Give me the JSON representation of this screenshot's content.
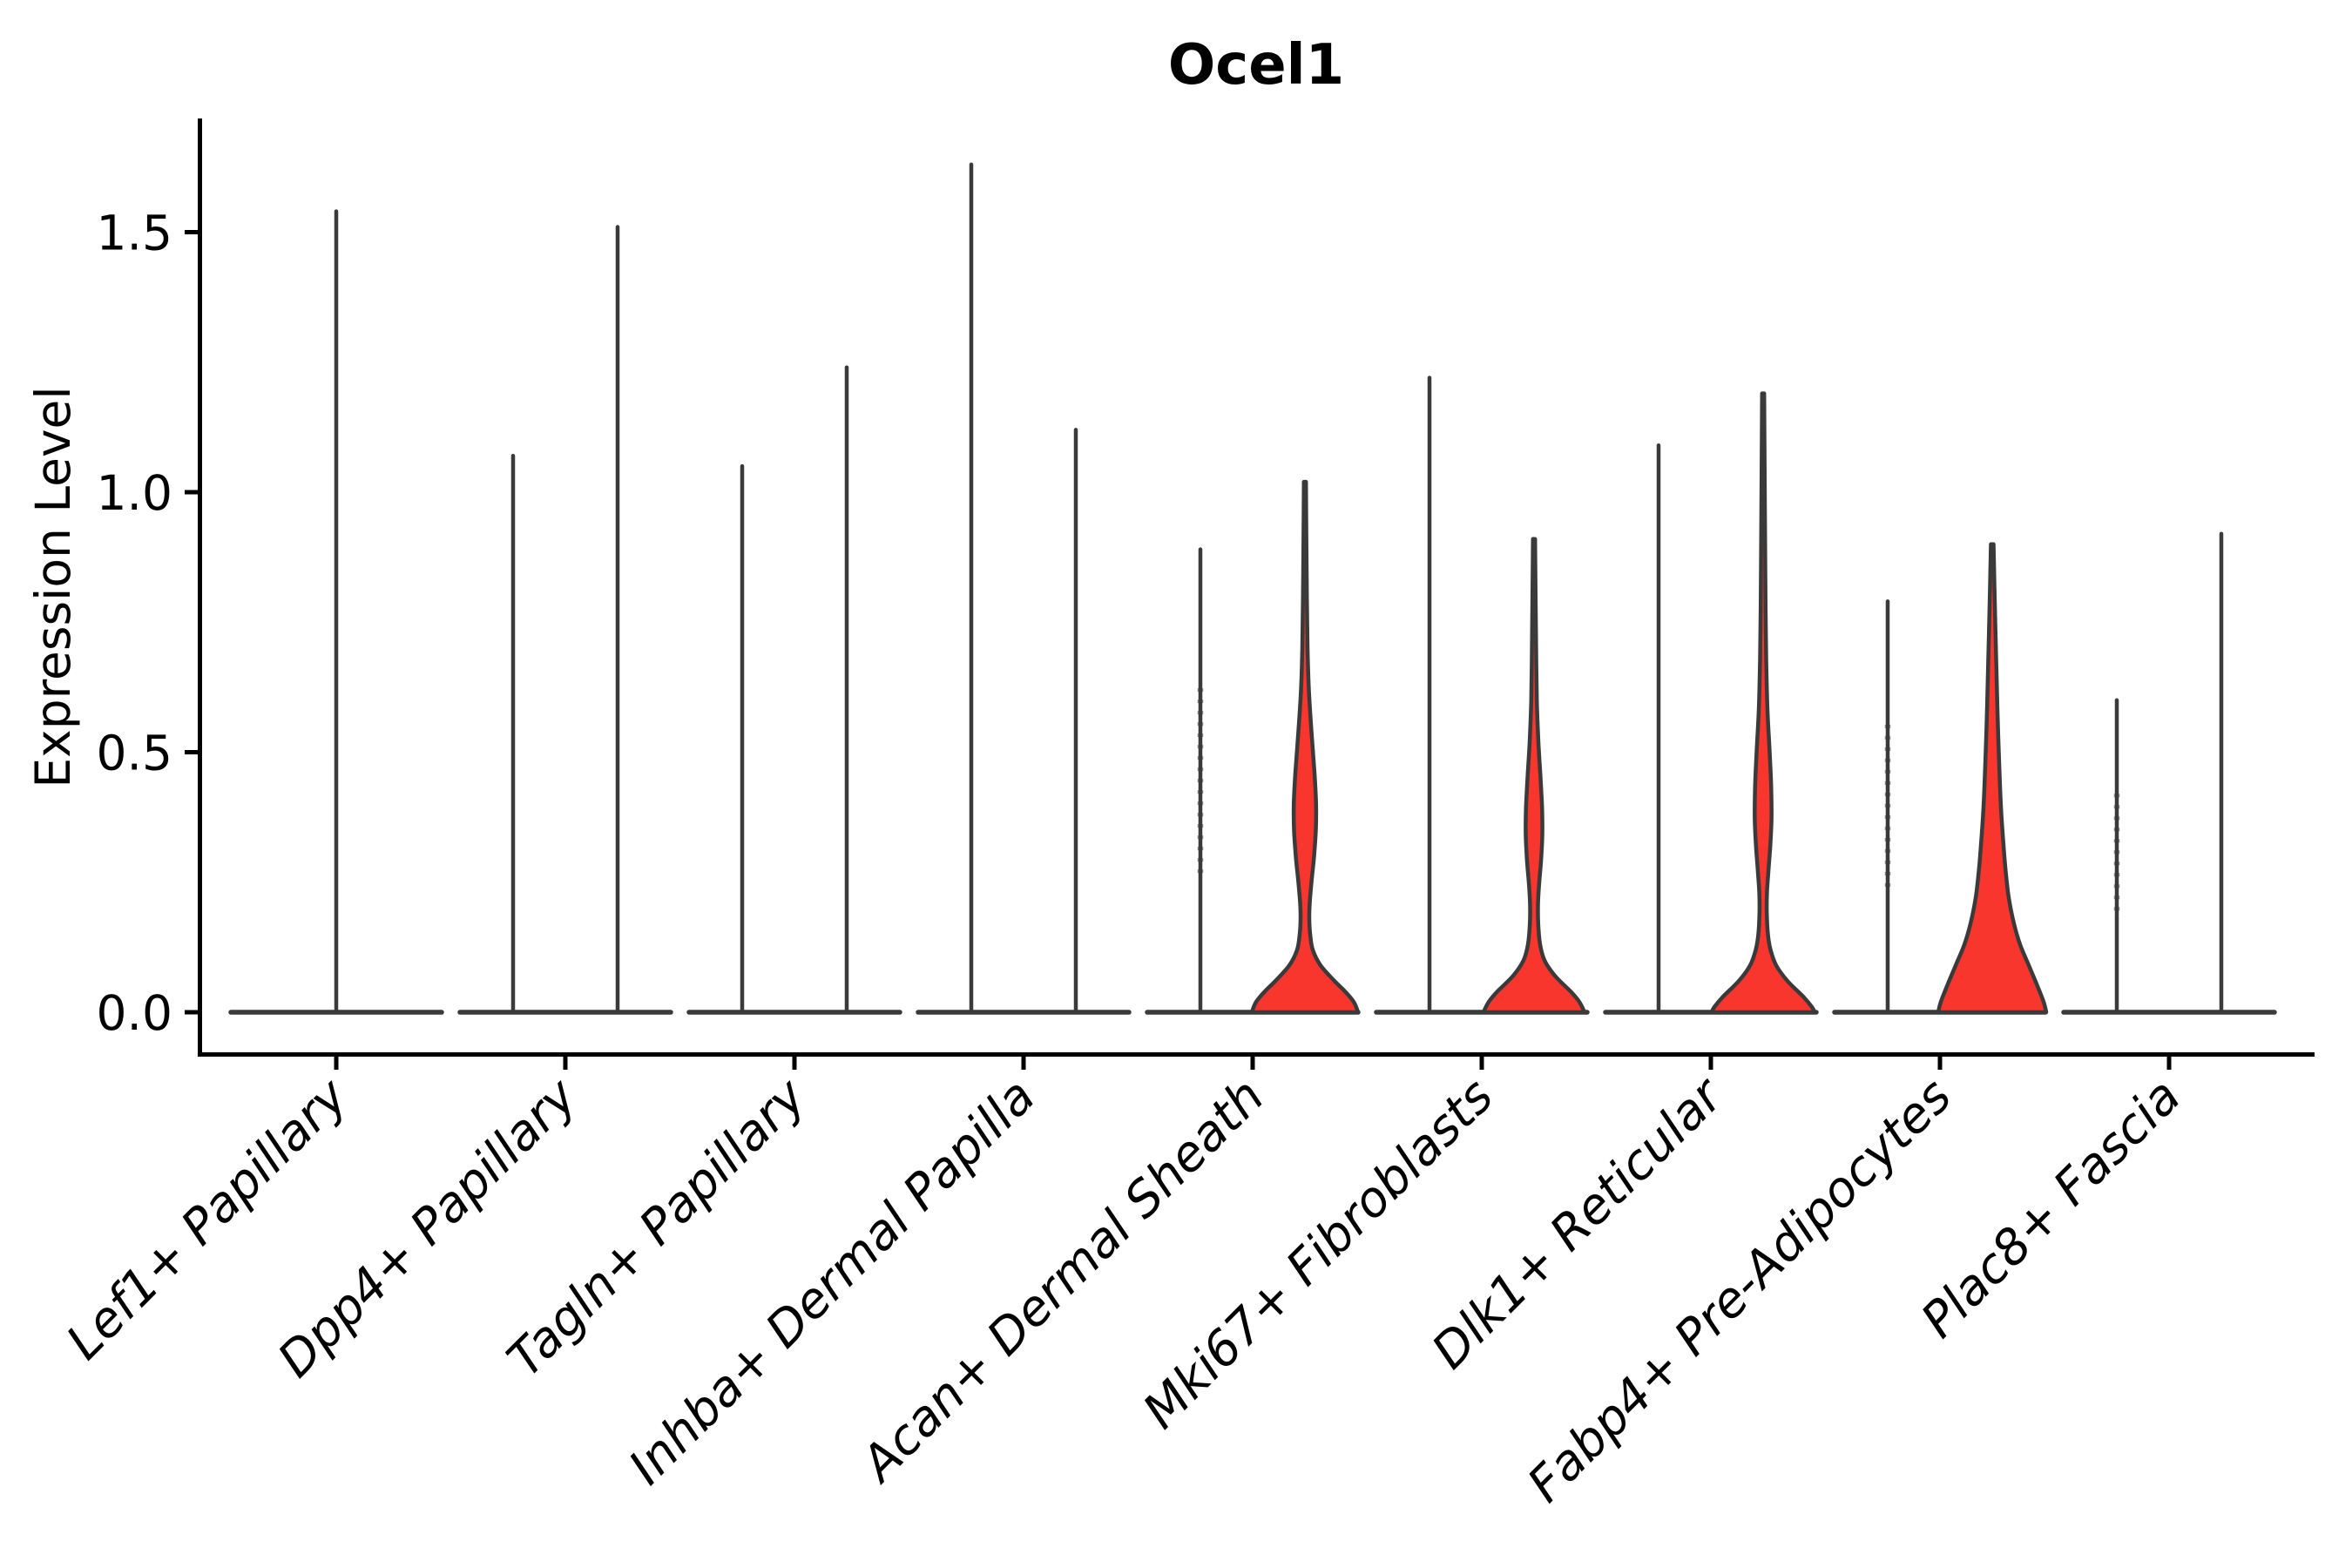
{
  "title": "Ocel1",
  "chart_data": {
    "type": "violin",
    "title": "Ocel1",
    "ylabel": "Expression Level",
    "xlabel": "",
    "yticks": [
      "0.0",
      "0.5",
      "1.0",
      "1.5"
    ],
    "ytick_values": [
      0.0,
      0.5,
      1.0,
      1.5
    ],
    "ylim": [
      -0.08,
      1.72
    ],
    "grid": "off",
    "legend": "none",
    "colors": {
      "violin_fill": "#f8362d",
      "violin_outline": "#3a3a3a",
      "axis": "#000000",
      "background": "#ffffff"
    },
    "description": "Grouped violin plot of Ocel1 expression per fibroblast cluster; each category shows a flat base at 0 with thin density spikes (left/right group); four categories have a visible red-filled right violin.",
    "categories": [
      {
        "label": "Lef1+ Papillary",
        "violins": [
          {
            "pos": "center",
            "type": "spike",
            "max": 1.54
          }
        ]
      },
      {
        "label": "Dpp4+ Papillary",
        "violins": [
          {
            "pos": "left",
            "type": "spike",
            "max": 1.07
          },
          {
            "pos": "right",
            "type": "spike",
            "max": 1.51
          }
        ]
      },
      {
        "label": "Tagln+ Papillary",
        "violins": [
          {
            "pos": "left",
            "type": "spike",
            "max": 1.05
          },
          {
            "pos": "right",
            "type": "spike",
            "max": 1.24
          }
        ]
      },
      {
        "label": "Inhba+ Dermal Papilla",
        "violins": [
          {
            "pos": "left",
            "type": "spike",
            "max": 1.63
          },
          {
            "pos": "right",
            "type": "spike",
            "max": 1.12
          }
        ]
      },
      {
        "label": "Acan+ Dermal Sheath",
        "violins": [
          {
            "pos": "left",
            "type": "spike",
            "max": 0.89,
            "dotted": true
          },
          {
            "pos": "right",
            "type": "violin",
            "max": 1.02,
            "profile": [
              [
                1.02,
                1.2
              ],
              [
                0.92,
                1.6
              ],
              [
                0.8,
                2.2
              ],
              [
                0.7,
                3.0
              ],
              [
                0.62,
                4.5
              ],
              [
                0.54,
                7.5
              ],
              [
                0.46,
                11.0
              ],
              [
                0.4,
                12.8
              ],
              [
                0.35,
                12.5
              ],
              [
                0.3,
                10.5
              ],
              [
                0.25,
                7.5
              ],
              [
                0.21,
                5.5
              ],
              [
                0.18,
                5.0
              ],
              [
                0.15,
                6.0
              ],
              [
                0.12,
                9.0
              ],
              [
                0.09,
                18.0
              ],
              [
                0.06,
                34.0
              ],
              [
                0.04,
                46.0
              ],
              [
                0.02,
                56.0
              ],
              [
                0.0,
                61.0
              ]
            ]
          }
        ]
      },
      {
        "label": "Mki67+ Fibroblasts",
        "violins": [
          {
            "pos": "left",
            "type": "spike",
            "max": 1.22
          },
          {
            "pos": "right",
            "type": "violin",
            "max": 0.91,
            "profile": [
              [
                0.91,
                1.2
              ],
              [
                0.8,
                1.8
              ],
              [
                0.7,
                2.4
              ],
              [
                0.6,
                3.2
              ],
              [
                0.52,
                5.0
              ],
              [
                0.45,
                7.5
              ],
              [
                0.39,
                9.3
              ],
              [
                0.34,
                9.5
              ],
              [
                0.29,
                8.0
              ],
              [
                0.25,
                6.0
              ],
              [
                0.21,
                4.6
              ],
              [
                0.17,
                4.8
              ],
              [
                0.13,
                7.0
              ],
              [
                0.1,
                12.0
              ],
              [
                0.07,
                24.0
              ],
              [
                0.04,
                42.0
              ],
              [
                0.02,
                52.0
              ],
              [
                0.0,
                58.0
              ]
            ]
          }
        ]
      },
      {
        "label": "Dlk1+ Reticular",
        "violins": [
          {
            "pos": "left",
            "type": "spike",
            "max": 1.09
          },
          {
            "pos": "right",
            "type": "violin",
            "max": 1.19,
            "profile": [
              [
                1.19,
                1.2
              ],
              [
                1.05,
                1.7
              ],
              [
                0.92,
                2.2
              ],
              [
                0.8,
                2.7
              ],
              [
                0.68,
                3.5
              ],
              [
                0.58,
                5.0
              ],
              [
                0.5,
                7.5
              ],
              [
                0.43,
                9.3
              ],
              [
                0.37,
                9.6
              ],
              [
                0.32,
                8.2
              ],
              [
                0.27,
                6.0
              ],
              [
                0.23,
                4.4
              ],
              [
                0.19,
                4.2
              ],
              [
                0.15,
                5.5
              ],
              [
                0.12,
                8.5
              ],
              [
                0.09,
                15.0
              ],
              [
                0.06,
                28.0
              ],
              [
                0.03,
                46.0
              ],
              [
                0.01,
                56.0
              ],
              [
                0.0,
                59.0
              ]
            ]
          }
        ]
      },
      {
        "label": "Fabp4+ Pre-Adipocytes",
        "violins": [
          {
            "pos": "left",
            "type": "spike",
            "max": 0.79,
            "dotted": true
          },
          {
            "pos": "right",
            "type": "violin",
            "max": 0.9,
            "profile": [
              [
                0.9,
                1.5
              ],
              [
                0.82,
                2.5
              ],
              [
                0.74,
                3.6
              ],
              [
                0.66,
                4.8
              ],
              [
                0.58,
                6.0
              ],
              [
                0.51,
                7.3
              ],
              [
                0.44,
                8.8
              ],
              [
                0.38,
                10.5
              ],
              [
                0.32,
                13.0
              ],
              [
                0.27,
                15.5
              ],
              [
                0.22,
                19.0
              ],
              [
                0.17,
                25.0
              ],
              [
                0.13,
                32.0
              ],
              [
                0.09,
                42.0
              ],
              [
                0.05,
                52.0
              ],
              [
                0.02,
                59.0
              ],
              [
                0.0,
                62.0
              ]
            ]
          }
        ]
      },
      {
        "label": "Plac8+ Fascia",
        "violins": [
          {
            "pos": "left",
            "type": "spike",
            "max": 0.6,
            "dotted": true
          },
          {
            "pos": "right",
            "type": "spike",
            "max": 0.92
          }
        ]
      }
    ]
  }
}
